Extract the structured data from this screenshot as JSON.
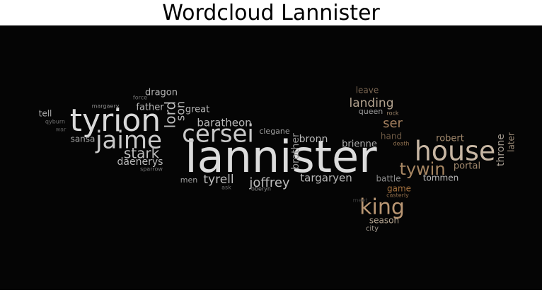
{
  "title": "Wordcloud Lannister",
  "chart_data": {
    "type": "wordcloud",
    "title": "Wordcloud Lannister",
    "background": "#050505",
    "words": [
      {
        "text": "lannister",
        "weight": 100,
        "color": "#dcdcdc"
      },
      {
        "text": "tyrion",
        "weight": 70,
        "color": "#d9d9d9"
      },
      {
        "text": "house",
        "weight": 58,
        "color": "#c7b6a3"
      },
      {
        "text": "cersei",
        "weight": 55,
        "color": "#c9c9c9"
      },
      {
        "text": "jaime",
        "weight": 55,
        "color": "#c9c9c9"
      },
      {
        "text": "king",
        "weight": 48,
        "color": "#b99673"
      },
      {
        "text": "tywin",
        "weight": 36,
        "color": "#a88763"
      },
      {
        "text": "stark",
        "weight": 30,
        "color": "#bdbdbd"
      },
      {
        "text": "lord",
        "weight": 30,
        "color": "#bdbdbd"
      },
      {
        "text": "joffrey",
        "weight": 28,
        "color": "#bdbdbd"
      },
      {
        "text": "son",
        "weight": 27,
        "color": "#b5b5b5"
      },
      {
        "text": "landing",
        "weight": 26,
        "color": "#b3a38f"
      },
      {
        "text": "ser",
        "weight": 26,
        "color": "#a37f5e"
      },
      {
        "text": "tyrell",
        "weight": 25,
        "color": "#bdbdbd"
      },
      {
        "text": "targaryen",
        "weight": 24,
        "color": "#b8b8b8"
      },
      {
        "text": "baratheon",
        "weight": 23,
        "color": "#b8b8b8"
      },
      {
        "text": "daenerys",
        "weight": 22,
        "color": "#b8b8b8"
      },
      {
        "text": "brother",
        "weight": 22,
        "color": "#8f8f8f"
      },
      {
        "text": "throne",
        "weight": 21,
        "color": "#a39a8f"
      },
      {
        "text": "bronn",
        "weight": 20,
        "color": "#b8b8b8"
      },
      {
        "text": "father",
        "weight": 20,
        "color": "#b8b8b8"
      },
      {
        "text": "dragon",
        "weight": 19,
        "color": "#b3b3b3"
      },
      {
        "text": "great",
        "weight": 19,
        "color": "#b3b3b3"
      },
      {
        "text": "brienne",
        "weight": 18,
        "color": "#b0b0b0"
      },
      {
        "text": "robert",
        "weight": 18,
        "color": "#a38a6e"
      },
      {
        "text": "later",
        "weight": 18,
        "color": "#9c8b78"
      },
      {
        "text": "portal",
        "weight": 17,
        "color": "#a38a6e"
      },
      {
        "text": "game",
        "weight": 17,
        "color": "#a3703e"
      },
      {
        "text": "season",
        "weight": 16,
        "color": "#b3a38f"
      },
      {
        "text": "hand",
        "weight": 16,
        "color": "#6e5a45"
      },
      {
        "text": "battle",
        "weight": 16,
        "color": "#8a8a8a"
      },
      {
        "text": "leave",
        "weight": 16,
        "color": "#7a6652"
      },
      {
        "text": "tommen",
        "weight": 16,
        "color": "#b8b8b8"
      },
      {
        "text": "sansa",
        "weight": 15,
        "color": "#a8a8a8"
      },
      {
        "text": "tell",
        "weight": 15,
        "color": "#a8a8a8"
      },
      {
        "text": "men",
        "weight": 14,
        "color": "#9e9e9e"
      },
      {
        "text": "queen",
        "weight": 14,
        "color": "#9e9e9e"
      },
      {
        "text": "clegane",
        "weight": 13,
        "color": "#9e9e9e"
      },
      {
        "text": "city",
        "weight": 12,
        "color": "#a39a8f"
      },
      {
        "text": "force",
        "weight": 10,
        "color": "#6e6e6e"
      },
      {
        "text": "margaery",
        "weight": 10,
        "color": "#8a8a8a"
      },
      {
        "text": "qyburn",
        "weight": 10,
        "color": "#707070"
      },
      {
        "text": "war",
        "weight": 10,
        "color": "#5a5a5a"
      },
      {
        "text": "sparrow",
        "weight": 10,
        "color": "#7a7a7a"
      },
      {
        "text": "ask",
        "weight": 10,
        "color": "#6e6e6e"
      },
      {
        "text": "oberyn",
        "weight": 10,
        "color": "#8a8a8a"
      },
      {
        "text": "rock",
        "weight": 10,
        "color": "#a38a6e"
      },
      {
        "text": "death",
        "weight": 10,
        "color": "#8c6e4e"
      },
      {
        "text": "casterly",
        "weight": 10,
        "color": "#8c6a48"
      },
      {
        "text": "meet",
        "weight": 10,
        "color": "#3d3d3d"
      }
    ]
  }
}
